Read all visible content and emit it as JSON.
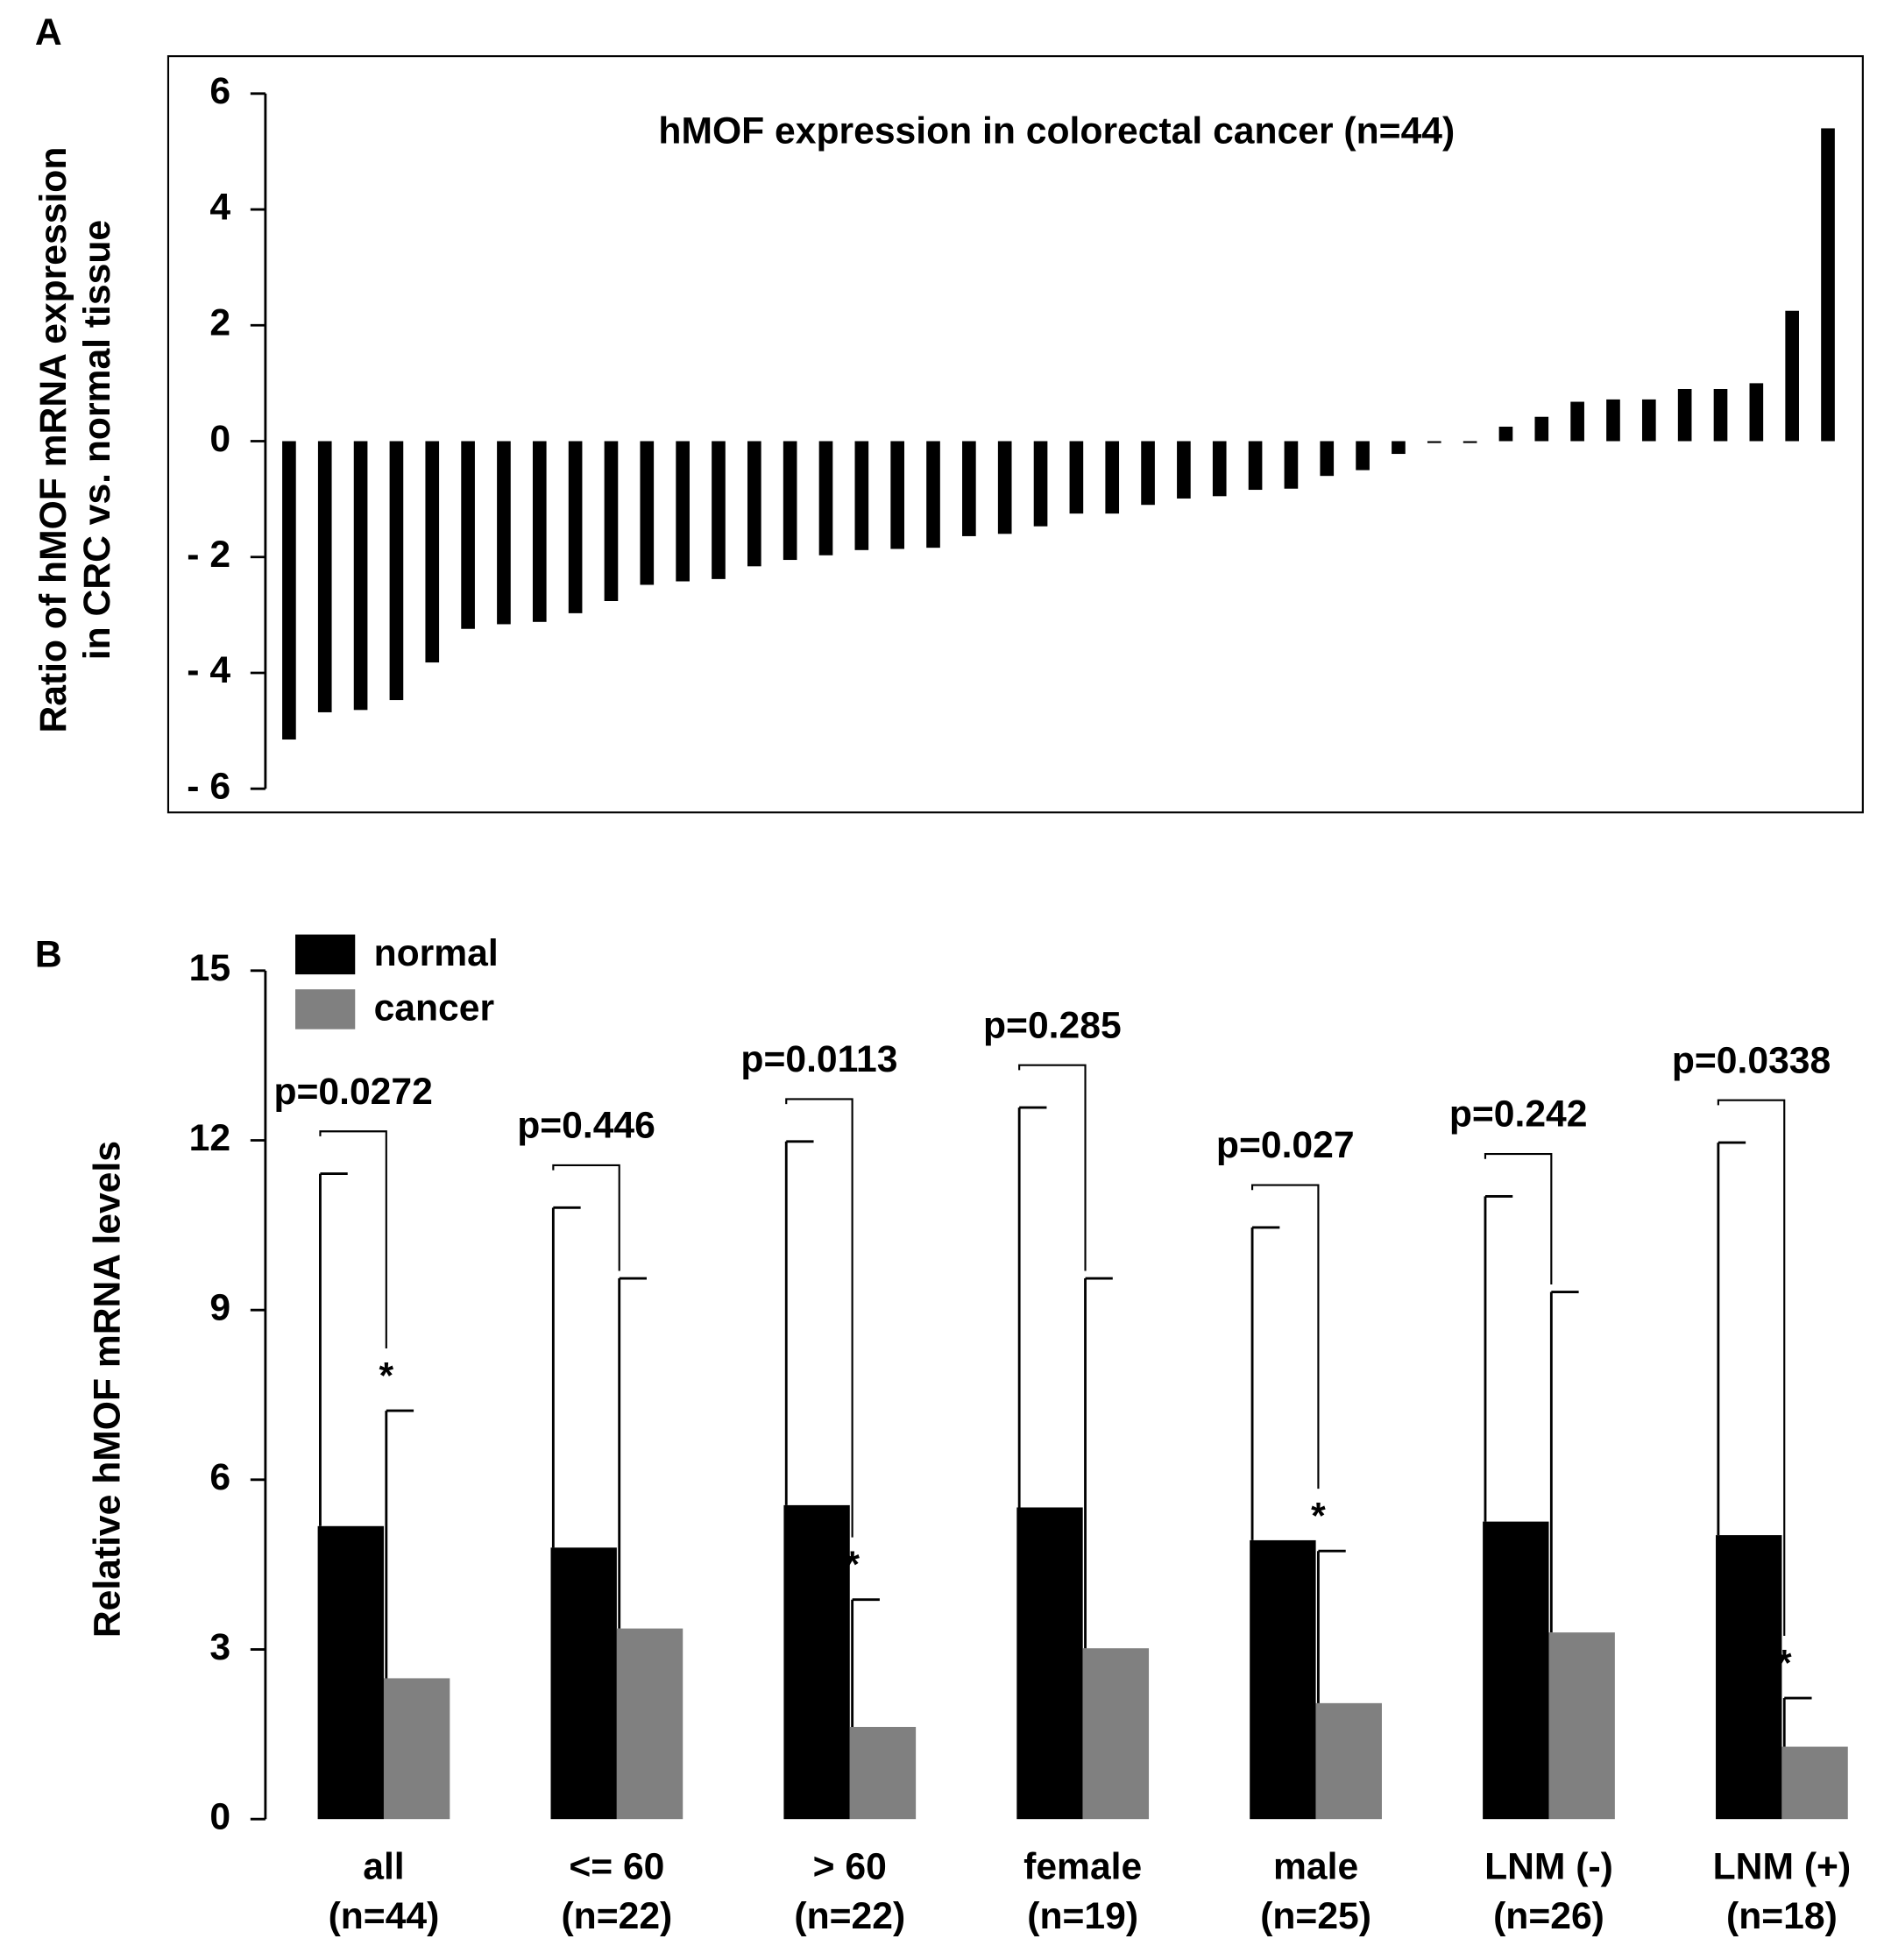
{
  "chart_data": [
    {
      "type": "bar",
      "panel": "A",
      "title": "hMOF expression in colorectal cancer (n=44)",
      "ylabel": [
        "Ratio of hMOF mRNA expression",
        "in CRC vs. normal tissue"
      ],
      "categories": [
        null,
        null,
        null,
        null,
        null,
        null,
        null,
        null,
        null,
        null,
        null,
        null,
        null,
        null,
        null,
        null,
        null,
        null,
        null,
        null,
        null,
        null,
        null,
        null,
        null,
        null,
        null,
        null,
        null,
        null,
        null,
        null,
        null,
        null,
        null,
        null,
        null,
        null,
        null,
        null,
        null,
        null,
        null,
        null
      ],
      "values": [
        -5.15,
        -4.68,
        -4.64,
        -4.47,
        -3.82,
        -3.24,
        -3.16,
        -3.12,
        -2.97,
        -2.76,
        -2.48,
        -2.42,
        -2.38,
        -2.16,
        -2.05,
        -1.97,
        -1.88,
        -1.86,
        -1.84,
        -1.64,
        -1.6,
        -1.47,
        -1.25,
        -1.25,
        -1.1,
        -0.99,
        -0.95,
        -0.84,
        -0.82,
        -0.6,
        -0.5,
        -0.22,
        -0.03,
        -0.03,
        0.25,
        0.42,
        0.68,
        0.72,
        0.72,
        0.9,
        0.9,
        1.0,
        2.25,
        5.4
      ],
      "color": "#000000",
      "ylim": [
        -6,
        6
      ],
      "yticks": [
        {
          "value": -6,
          "label": "- 6"
        },
        {
          "value": -4,
          "label": "- 4"
        },
        {
          "value": -2,
          "label": "- 2"
        },
        0,
        2,
        4,
        6
      ]
    },
    {
      "type": "grouped_bar",
      "panel": "B",
      "ylabel": "Relative hMOF mRNA levels",
      "categories": [
        [
          "all",
          "(n=44)"
        ],
        [
          "<= 60",
          "(n=22)"
        ],
        [
          "> 60",
          "(n=22)"
        ],
        [
          "female",
          "(n=19)"
        ],
        [
          "male",
          "(n=25)"
        ],
        [
          "LNM (-)",
          "(n=26)"
        ],
        [
          "LNM (+)",
          "(n=18)"
        ]
      ],
      "series": [
        {
          "name": "normal",
          "color": "#000000",
          "values": [
            5.18,
            4.8,
            5.55,
            5.51,
            4.93,
            5.26,
            5.02
          ],
          "errors": [
            6.23,
            6.01,
            6.43,
            7.07,
            5.53,
            5.75,
            6.94
          ]
        },
        {
          "name": "cancer",
          "color": "#808080",
          "values": [
            2.49,
            3.37,
            1.63,
            3.02,
            2.05,
            3.3,
            1.28
          ],
          "errors": [
            4.73,
            6.19,
            2.25,
            6.54,
            2.69,
            6.02,
            0.86
          ]
        }
      ],
      "annotations": [
        {
          "label": "p=0.0272",
          "star": "*"
        },
        {
          "label": "p=0.446"
        },
        {
          "label": "p=0.0113",
          "star": "*"
        },
        {
          "label": "p=0.285"
        },
        {
          "label": "p=0.027",
          "star": "*"
        },
        {
          "label": "p=0.242"
        },
        {
          "label": "p=0.0338",
          "star": "*"
        }
      ],
      "legend": "top-left",
      "ylim": [
        0,
        15
      ],
      "yticks": [
        0,
        3,
        6,
        9,
        12,
        15
      ]
    }
  ]
}
